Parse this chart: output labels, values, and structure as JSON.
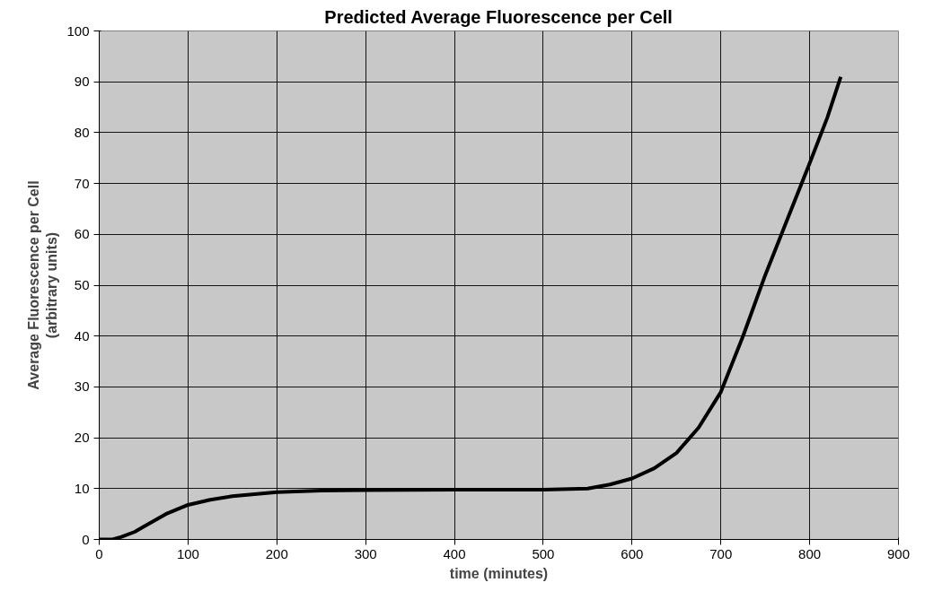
{
  "chart_data": {
    "type": "line",
    "title": "Predicted Average Fluorescence per Cell",
    "xlabel": "time (minutes)",
    "ylabel": "Average Fluorescence per Cell\n(arbitrary units)",
    "series": [
      {
        "color": "#000000",
        "x": [
          0,
          15,
          25,
          40,
          50,
          75,
          100,
          125,
          150,
          200,
          250,
          300,
          400,
          500,
          550,
          575,
          600,
          625,
          650,
          675,
          700,
          725,
          750,
          775,
          800,
          820,
          835
        ],
        "values": [
          0,
          0,
          0.5,
          1.5,
          2.5,
          5,
          6.8,
          7.8,
          8.5,
          9.3,
          9.6,
          9.7,
          9.8,
          9.8,
          10,
          10.8,
          12,
          14,
          17,
          22,
          29,
          40,
          52,
          63,
          74,
          83,
          91
        ]
      }
    ],
    "xlim": [
      0,
      900
    ],
    "xticks": [
      0,
      100,
      200,
      300,
      400,
      500,
      600,
      700,
      800,
      900
    ],
    "ylim": [
      0,
      100
    ],
    "yticks": [
      0,
      10,
      20,
      30,
      40,
      50,
      60,
      70,
      80,
      90,
      100
    ],
    "grid": true,
    "marker": "none",
    "line_style": "solid"
  }
}
